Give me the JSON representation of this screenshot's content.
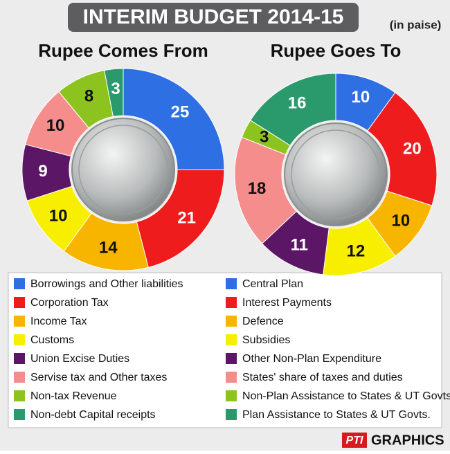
{
  "title": "INTERIM BUDGET 2014-15",
  "unit_note": "(in paise)",
  "credit": "GRAPHICS",
  "credit_logo": "PTI",
  "chart_data": [
    {
      "type": "pie",
      "title": "Rupee Comes From",
      "categories": [
        "Borrowings and Other liabilities",
        "Corporation Tax",
        "Income Tax",
        "Customs",
        "Union Excise Duties",
        "Servise tax and Other taxes",
        "Non-tax Revenue",
        "Non-debt Capital receipts"
      ],
      "values": [
        25,
        21,
        14,
        10,
        9,
        10,
        8,
        3
      ],
      "colors": [
        "#2f6fe4",
        "#ee1c1c",
        "#f7b500",
        "#f7ee00",
        "#5b1666",
        "#f58d8d",
        "#8cc31f",
        "#2a9a6c"
      ]
    },
    {
      "type": "pie",
      "title": "Rupee Goes To",
      "categories": [
        "Central Plan",
        "Interest Payments",
        "Defence",
        "Subsidies",
        "Other Non-Plan Expenditure",
        "States' share of taxes and duties",
        "Non-Plan Assistance to States & UT Govts.",
        "Plan Assistance to States & UT Govts."
      ],
      "values": [
        10,
        20,
        10,
        12,
        11,
        18,
        3,
        16
      ],
      "colors": [
        "#2f6fe4",
        "#ee1c1c",
        "#f7b500",
        "#f7ee00",
        "#5b1666",
        "#f58d8d",
        "#8cc31f",
        "#2a9a6c"
      ]
    }
  ]
}
